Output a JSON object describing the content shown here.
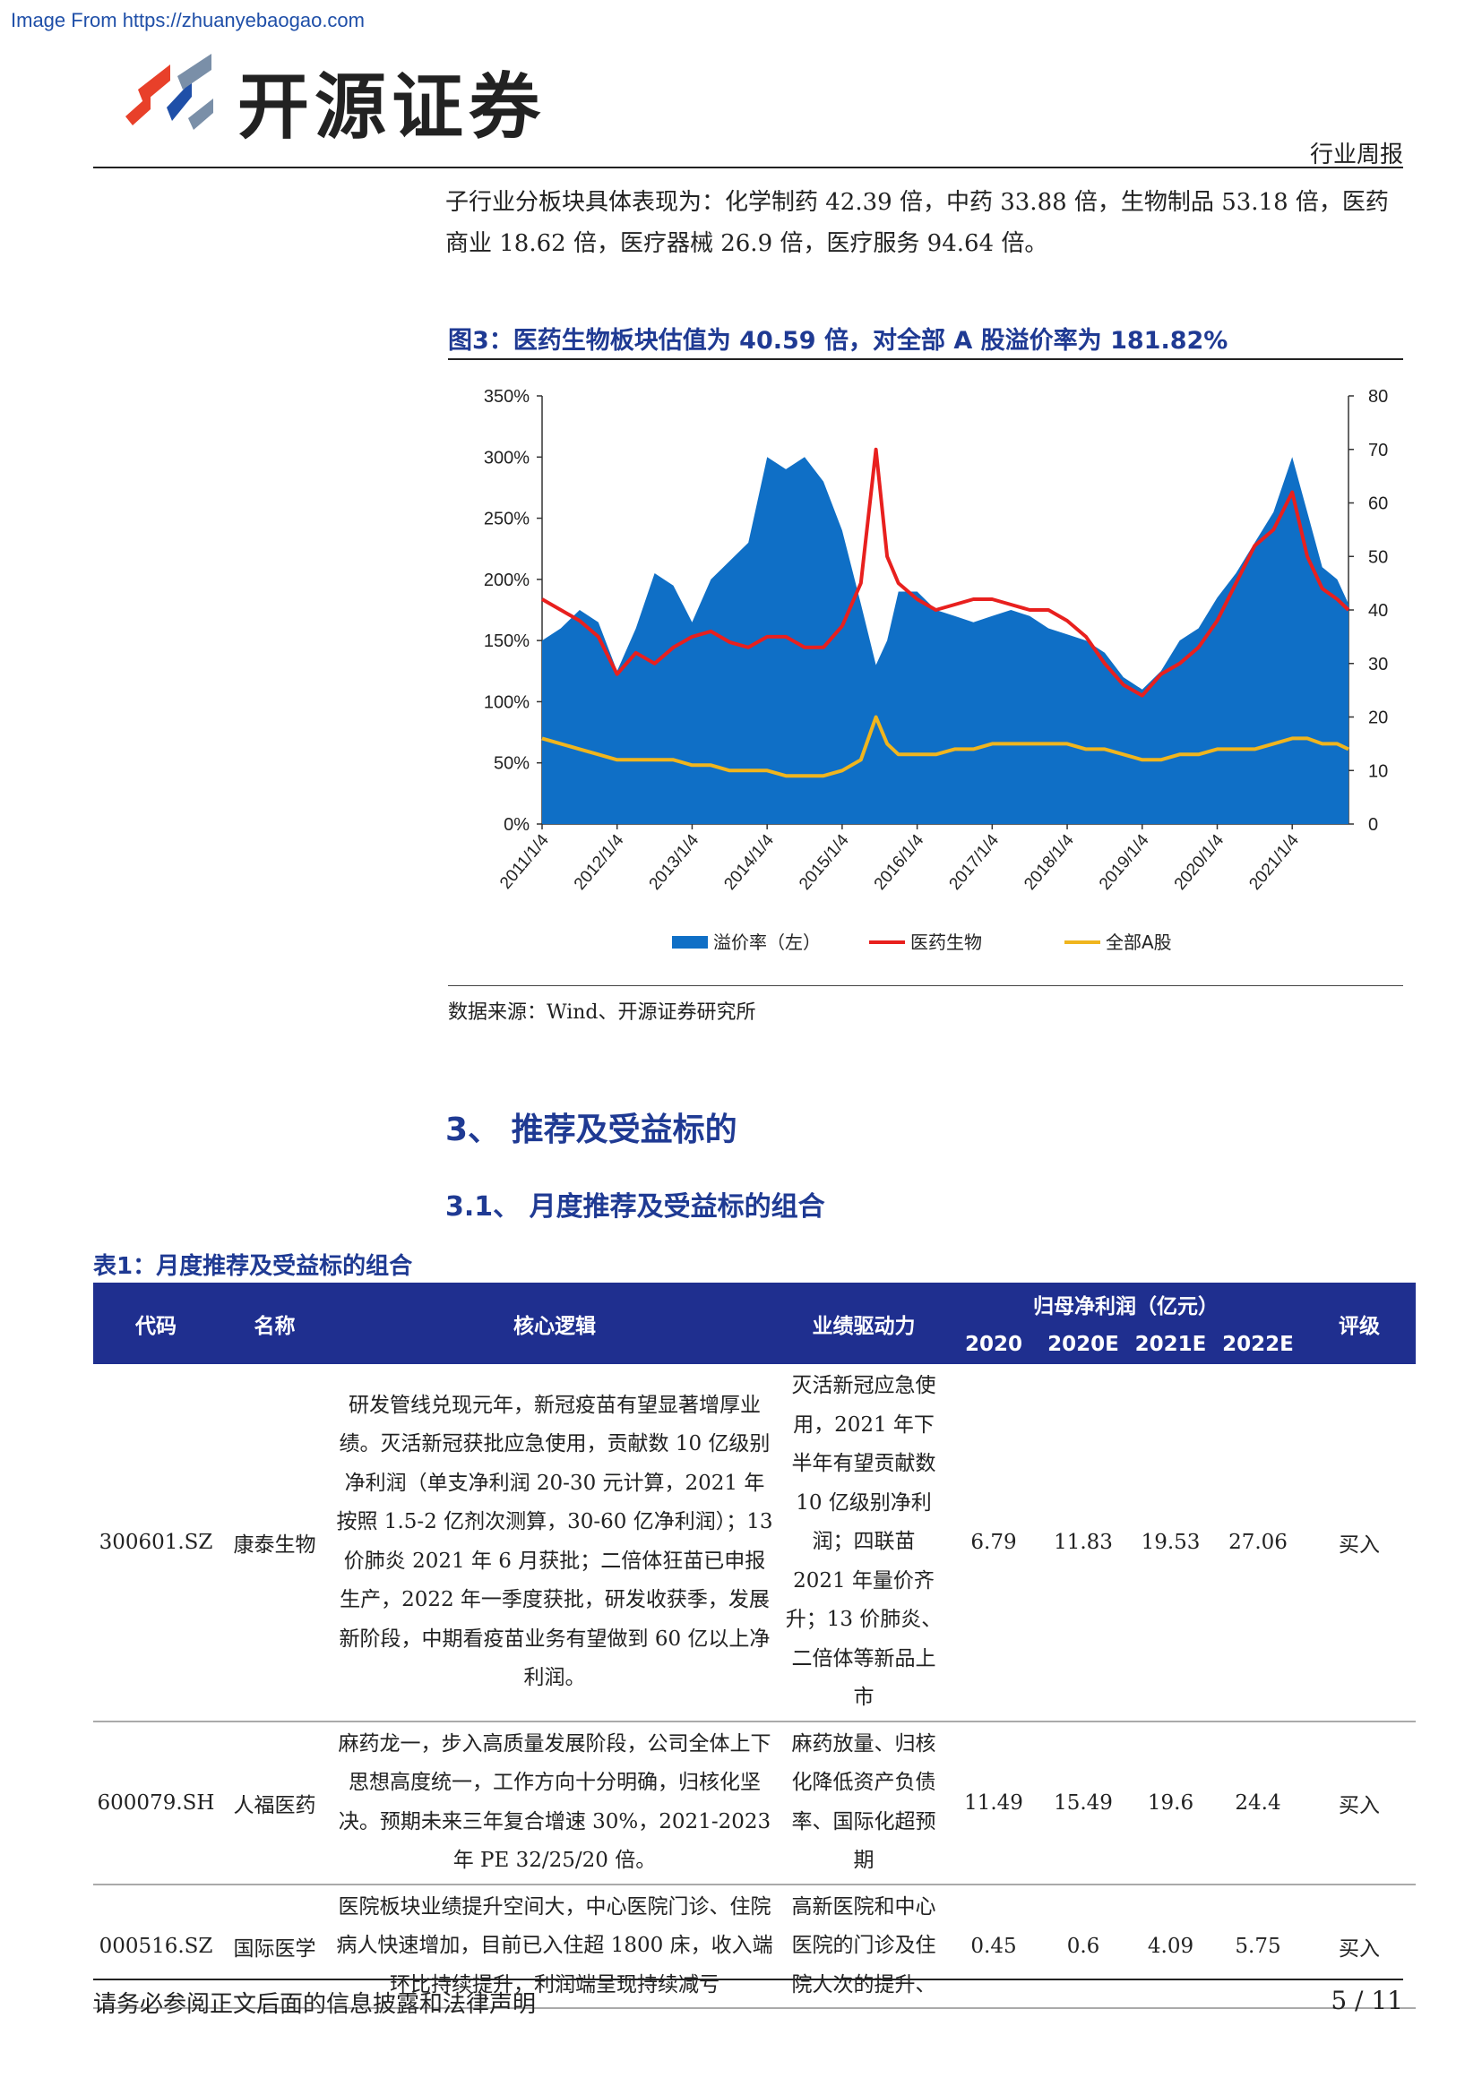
{
  "watermark": "Image From https://zhuanyebaogao.com",
  "header": {
    "brand": "开源证券",
    "section": "行业周报"
  },
  "intro": "子行业分板块具体表现为：化学制药 42.39 倍，中药 33.88 倍，生物制品 53.18 倍，医药商业 18.62 倍，医疗器械 26.9 倍，医疗服务 94.64 倍。",
  "figure": {
    "title": "图3：医药生物板块估值为 40.59 倍，对全部 A 股溢价率为 181.82%",
    "source": "数据来源：Wind、开源证券研究所"
  },
  "chart_data": {
    "type": "area",
    "title": "",
    "x_ticks": [
      "2011/1/4",
      "2012/1/4",
      "2013/1/4",
      "2014/1/4",
      "2015/1/4",
      "2016/1/4",
      "2017/1/4",
      "2018/1/4",
      "2019/1/4",
      "2020/1/4",
      "2021/1/4"
    ],
    "left_axis": {
      "ticks": [
        "0%",
        "50%",
        "100%",
        "150%",
        "200%",
        "250%",
        "300%",
        "350%"
      ],
      "ylim": [
        0,
        350
      ]
    },
    "right_axis": {
      "ticks": [
        "0",
        "10",
        "20",
        "30",
        "40",
        "50",
        "60",
        "70",
        "80"
      ],
      "ylim": [
        0,
        80
      ]
    },
    "x": [
      2011.0,
      2011.25,
      2011.5,
      2011.75,
      2012.0,
      2012.25,
      2012.5,
      2012.75,
      2013.0,
      2013.25,
      2013.5,
      2013.75,
      2014.0,
      2014.25,
      2014.5,
      2014.75,
      2015.0,
      2015.25,
      2015.45,
      2015.6,
      2015.75,
      2016.0,
      2016.25,
      2016.5,
      2016.75,
      2017.0,
      2017.25,
      2017.5,
      2017.75,
      2018.0,
      2018.25,
      2018.5,
      2018.75,
      2019.0,
      2019.25,
      2019.5,
      2019.75,
      2020.0,
      2020.25,
      2020.5,
      2020.75,
      2021.0,
      2021.2,
      2021.4,
      2021.6,
      2021.75
    ],
    "series": [
      {
        "name": "溢价率（左）",
        "axis": "left",
        "color": "#0f6fc6",
        "values": [
          150,
          160,
          175,
          165,
          125,
          160,
          205,
          195,
          165,
          200,
          215,
          230,
          300,
          290,
          300,
          280,
          240,
          180,
          130,
          150,
          190,
          190,
          175,
          170,
          165,
          170,
          175,
          170,
          160,
          155,
          150,
          140,
          120,
          110,
          125,
          150,
          160,
          185,
          205,
          230,
          255,
          300,
          255,
          210,
          200,
          180
        ]
      },
      {
        "name": "医药生物",
        "axis": "right",
        "color": "#e8201e",
        "values": [
          42,
          40,
          38,
          35,
          28,
          32,
          30,
          33,
          35,
          36,
          34,
          33,
          35,
          35,
          33,
          33,
          37,
          45,
          70,
          50,
          45,
          42,
          40,
          41,
          42,
          42,
          41,
          40,
          40,
          38,
          35,
          30,
          26,
          24,
          28,
          30,
          33,
          38,
          45,
          52,
          55,
          62,
          50,
          44,
          42,
          40
        ]
      },
      {
        "name": "全部A股",
        "axis": "right",
        "color": "#f0b51e",
        "values": [
          16,
          15,
          14,
          13,
          12,
          12,
          12,
          12,
          11,
          11,
          10,
          10,
          10,
          9,
          9,
          9,
          10,
          12,
          20,
          15,
          13,
          13,
          13,
          14,
          14,
          15,
          15,
          15,
          15,
          15,
          14,
          14,
          13,
          12,
          12,
          13,
          13,
          14,
          14,
          14,
          15,
          16,
          16,
          15,
          15,
          14
        ]
      }
    ]
  },
  "sections": {
    "h3": "3、 推荐及受益标的",
    "h31": "3.1、 月度推荐及受益标的组合"
  },
  "table": {
    "title": "表1：月度推荐及受益标的组合",
    "headers": {
      "code": "代码",
      "name": "名称",
      "logic": "核心逻辑",
      "driver": "业绩驱动力",
      "profit": "归母净利润（亿元）",
      "rating": "评级"
    },
    "years": [
      "2020",
      "2020E",
      "2021E",
      "2022E"
    ],
    "rows": [
      {
        "code": "300601.SZ",
        "name": "康泰生物",
        "logic": "研发管线兑现元年，新冠疫苗有望显著增厚业绩。灭活新冠获批应急使用，贡献数 10 亿级别净利润（单支净利润 20-30 元计算，2021 年按照 1.5-2 亿剂次测算，30-60 亿净利润）；13 价肺炎 2021 年 6 月获批；二倍体狂苗已申报生产，2022 年一季度获批，研发收获季，发展新阶段，中期看疫苗业务有望做到 60 亿以上净利润。",
        "driver": "灭活新冠应急使用，2021 年下半年有望贡献数 10 亿级别净利润；四联苗 2021 年量价齐升；13 价肺炎、二倍体等新品上市",
        "v1": "6.79",
        "v2": "11.83",
        "v3": "19.53",
        "v4": "27.06",
        "rating": "买入"
      },
      {
        "code": "600079.SH",
        "name": "人福医药",
        "logic": "麻药龙一，步入高质量发展阶段，公司全体上下思想高度统一，工作方向十分明确，归核化坚决。预期未来三年复合增速 30%，2021-2023 年 PE 32/25/20 倍。",
        "driver": "麻药放量、归核化降低资产负债率、国际化超预期",
        "v1": "11.49",
        "v2": "15.49",
        "v3": "19.6",
        "v4": "24.4",
        "rating": "买入"
      },
      {
        "code": "000516.SZ",
        "name": "国际医学",
        "logic": "医院板块业绩提升空间大，中心医院门诊、住院病人快速增加，目前已入住超 1800 床，收入端环比持续提升，利润端呈现持续减亏",
        "driver": "高新医院和中心医院的门诊及住院人次的提升、",
        "v1": "0.45",
        "v2": "0.6",
        "v3": "4.09",
        "v4": "5.75",
        "rating": "买入"
      }
    ]
  },
  "footer": {
    "disclaimer": "请务必参阅正文后面的信息披露和法律声明",
    "page": "5 / 11"
  }
}
